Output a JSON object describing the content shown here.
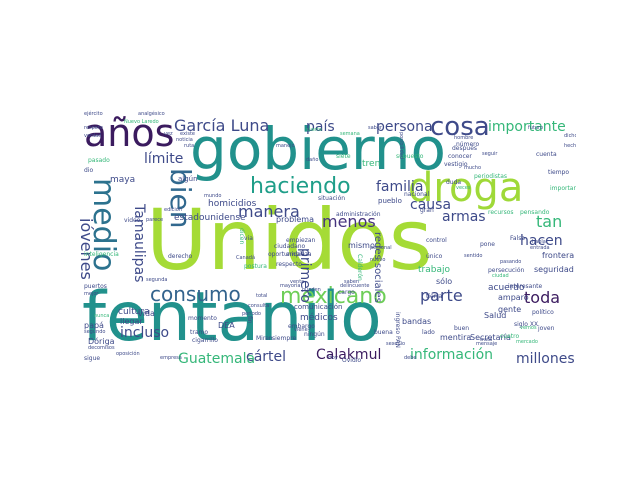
{
  "palette": {
    "dark_purple": "#3b1b5f",
    "purple": "#46337e",
    "slate_blue": "#3e4a89",
    "blue": "#365c8d",
    "teal_blue": "#277f8e",
    "teal": "#1f9e89",
    "green": "#35b779",
    "lime": "#9fd938",
    "yellow_green": "#c8e020"
  },
  "words": [
    {
      "text": "Unidos",
      "color": "#a5db36"
    },
    {
      "text": "fentanilo",
      "color": "#21918c"
    },
    {
      "text": "gobierno",
      "color": "#21918c"
    },
    {
      "text": "años",
      "color": "#3b1b5f"
    },
    {
      "text": "droga",
      "color": "#9fd938"
    },
    {
      "text": "medio",
      "color": "#2c728e"
    },
    {
      "text": "bien",
      "color": "#31688e"
    },
    {
      "text": "cosa",
      "color": "#3e4a89"
    },
    {
      "text": "haciendo",
      "color": "#1f9e89"
    },
    {
      "text": "mexicano",
      "color": "#6ece58"
    },
    {
      "text": "consumo",
      "color": "#33638d"
    },
    {
      "text": "García Luna",
      "color": "#3e4a89"
    },
    {
      "text": "jóvenes",
      "color": "#3e4a89"
    },
    {
      "text": "Tamaulipas",
      "color": "#3e4a89"
    },
    {
      "text": "importante",
      "color": "#35b779"
    },
    {
      "text": "manera",
      "color": "#3e4a89"
    },
    {
      "text": "menos",
      "color": "#46337e"
    },
    {
      "text": "primero",
      "color": "#3e4a89"
    },
    {
      "text": "país",
      "color": "#3e4a89"
    },
    {
      "text": "persona",
      "color": "#3e4a89"
    },
    {
      "text": "límite",
      "color": "#3e4a89"
    },
    {
      "text": "familia",
      "color": "#3e4a89"
    },
    {
      "text": "causa",
      "color": "#3e4a89"
    },
    {
      "text": "armas",
      "color": "#3e4a89"
    },
    {
      "text": "hacen",
      "color": "#3e4a89"
    },
    {
      "text": "tan",
      "color": "#35b779"
    },
    {
      "text": "toda",
      "color": "#3b1b5f"
    },
    {
      "text": "parte",
      "color": "#3e4a89"
    },
    {
      "text": "incluso",
      "color": "#3e4a89"
    },
    {
      "text": "Guatemala",
      "color": "#35b779"
    },
    {
      "text": "cártel",
      "color": "#3e4a89"
    },
    {
      "text": "Calakmul",
      "color": "#3b1b5f"
    },
    {
      "text": "información",
      "color": "#35b779"
    },
    {
      "text": "millones",
      "color": "#3e4a89"
    },
    {
      "text": "redes sociales",
      "color": "#3e4a89"
    },
    {
      "text": "homicidios",
      "color": "#3e4a89"
    },
    {
      "text": "maya",
      "color": "#3e4a89"
    },
    {
      "text": "amparo",
      "color": "#3e4a89"
    },
    {
      "text": "seguridad",
      "color": "#3e4a89"
    },
    {
      "text": "frontera",
      "color": "#3e4a89"
    },
    {
      "text": "cultura",
      "color": "#3e4a89"
    },
    {
      "text": "DEA",
      "color": "#3e4a89"
    },
    {
      "text": "médicos",
      "color": "#3e4a89"
    },
    {
      "text": "mentira",
      "color": "#3e4a89"
    },
    {
      "text": "bandas",
      "color": "#3e4a89"
    },
    {
      "text": "llegar",
      "color": "#3e4a89"
    },
    {
      "text": "papá",
      "color": "#3e4a89"
    },
    {
      "text": "Dóriga",
      "color": "#3e4a89"
    },
    {
      "text": "sólo",
      "color": "#3e4a89"
    },
    {
      "text": "Salud",
      "color": "#3e4a89"
    },
    {
      "text": "Secretaría",
      "color": "#3e4a89"
    },
    {
      "text": "comunicación",
      "color": "#3e4a89"
    },
    {
      "text": "estadounidense",
      "color": "#3e4a89"
    },
    {
      "text": "problema",
      "color": "#3e4a89"
    },
    {
      "text": "acuerdo",
      "color": "#3e4a89"
    },
    {
      "text": "gente",
      "color": "#3e4a89"
    },
    {
      "text": "mismo",
      "color": "#3e4a89"
    },
    {
      "text": "vida",
      "color": "#3e4a89"
    },
    {
      "text": "momento",
      "color": "#3e4a89"
    },
    {
      "text": "trabajo",
      "color": "#35b779"
    },
    {
      "text": "ejército",
      "color": "#3e4a89"
    },
    {
      "text": "analgésico",
      "color": "#3e4a89"
    },
    {
      "text": "Nuevo Laredo",
      "color": "#35b779"
    },
    {
      "text": "noticia",
      "color": "#3e4a89"
    },
    {
      "text": "mundo",
      "color": "#3e4a89"
    },
    {
      "text": "después",
      "color": "#3e4a89"
    },
    {
      "text": "conocer",
      "color": "#3e4a89"
    },
    {
      "text": "vestigio",
      "color": "#3e4a89"
    },
    {
      "text": "periodistas",
      "color": "#35b779"
    },
    {
      "text": "importantes",
      "color": "#35b779"
    },
    {
      "text": "inteligencia",
      "color": "#35b779"
    },
    {
      "text": "tramo",
      "color": "#3e4a89"
    },
    {
      "text": "cigarrillo",
      "color": "#3e4a89"
    },
    {
      "text": "persecución",
      "color": "#3e4a89"
    },
    {
      "text": "interesante",
      "color": "#3e4a89"
    },
    {
      "text": "político",
      "color": "#3e4a89"
    },
    {
      "text": "siglo XX",
      "color": "#3e4a89"
    },
    {
      "text": "cuatro",
      "color": "#35b779"
    },
    {
      "text": "gran",
      "color": "#3e4a89"
    },
    {
      "text": "futuro",
      "color": "#3e4a89"
    },
    {
      "text": "dicho",
      "color": "#3e4a89"
    },
    {
      "text": "suerte",
      "color": "#35b779"
    },
    {
      "text": "saber",
      "color": "#3e4a89"
    },
    {
      "text": "tren",
      "color": "#35b779"
    },
    {
      "text": "siete",
      "color": "#35b779"
    },
    {
      "text": "supuesto",
      "color": "#35b779"
    },
    {
      "text": "duda",
      "color": "#3e4a89"
    },
    {
      "text": "algún",
      "color": "#3e4a89"
    },
    {
      "text": "edición",
      "color": "#3e4a89"
    },
    {
      "text": "via",
      "color": "#3e4a89"
    },
    {
      "text": "empiezan",
      "color": "#3e4a89"
    },
    {
      "text": "empieza",
      "color": "#3e4a89"
    },
    {
      "text": "ciudadano",
      "color": "#3e4a89"
    },
    {
      "text": "oportunidad",
      "color": "#3e4a89"
    },
    {
      "text": "respecto",
      "color": "#3e4a89"
    },
    {
      "text": "situación",
      "color": "#3e4a89"
    },
    {
      "text": "administración",
      "color": "#3e4a89"
    },
    {
      "text": "pueblo",
      "color": "#3e4a89"
    },
    {
      "text": "nacional",
      "color": "#3e4a89"
    },
    {
      "text": "número",
      "color": "#3e4a89"
    },
    {
      "text": "recursos",
      "color": "#35b779"
    },
    {
      "text": "pensando",
      "color": "#35b779"
    },
    {
      "text": "Falso",
      "color": "#3e4a89"
    },
    {
      "text": "pone",
      "color": "#3e4a89"
    },
    {
      "text": "joven",
      "color": "#3e4a89"
    },
    {
      "text": "siempre",
      "color": "#3e4a89"
    },
    {
      "text": "buena",
      "color": "#3e4a89"
    },
    {
      "text": "buen",
      "color": "#3e4a89"
    },
    {
      "text": "tierra",
      "color": "#3e4a89"
    },
    {
      "text": "control",
      "color": "#3e4a89"
    },
    {
      "text": "único",
      "color": "#3e4a89"
    },
    {
      "text": "ingreso PAN",
      "color": "#3e4a89"
    },
    {
      "text": "Calderón",
      "color": "#35b779"
    },
    {
      "text": "personal",
      "color": "#3e4a89"
    },
    {
      "text": "nuevo",
      "color": "#3e4a89"
    },
    {
      "text": "embargo",
      "color": "#3e4a89"
    },
    {
      "text": "pueden",
      "color": "#3e4a89"
    },
    {
      "text": "ningún",
      "color": "#3e4a89"
    },
    {
      "text": "Canadá",
      "color": "#3e4a89"
    },
    {
      "text": "postura",
      "color": "#35b779"
    },
    {
      "text": "consulta",
      "color": "#3e4a89"
    },
    {
      "text": "periodo",
      "color": "#3e4a89"
    },
    {
      "text": "segunda",
      "color": "#3e4a89"
    },
    {
      "text": "puertos",
      "color": "#3e4a89"
    },
    {
      "text": "mejor",
      "color": "#3e4a89"
    },
    {
      "text": "decomisos",
      "color": "#3e4a89"
    },
    {
      "text": "segundo",
      "color": "#3e4a89"
    },
    {
      "text": "oposición",
      "color": "#3e4a89"
    },
    {
      "text": "empresa",
      "color": "#3e4a89"
    },
    {
      "text": "nunca",
      "color": "#35b779"
    },
    {
      "text": "sigue",
      "color": "#3e4a89"
    },
    {
      "text": "Ovidio",
      "color": "#3e4a89"
    },
    {
      "text": "Hoy",
      "color": "#3e4a89"
    },
    {
      "text": "derecho",
      "color": "#3e4a89"
    },
    {
      "text": "dicen",
      "color": "#35b779"
    },
    {
      "text": "cargo",
      "color": "#3e4a89"
    },
    {
      "text": "delincuente",
      "color": "#3e4a89"
    },
    {
      "text": "saben",
      "color": "#3e4a89"
    },
    {
      "text": "debe",
      "color": "#3e4a89"
    },
    {
      "text": "mensaje",
      "color": "#3e4a89"
    },
    {
      "text": "mercado",
      "color": "#35b779"
    },
    {
      "text": "pasando",
      "color": "#3e4a89"
    },
    {
      "text": "verdad",
      "color": "#3e4a89"
    },
    {
      "text": "respeto",
      "color": "#3e4a89"
    },
    {
      "text": "ruta",
      "color": "#3e4a89"
    },
    {
      "text": "vez",
      "color": "#3e4a89"
    },
    {
      "text": "existe",
      "color": "#3e4a89"
    },
    {
      "text": "semana",
      "color": "#35b779"
    },
    {
      "text": "posibilidad",
      "color": "#3e4a89"
    },
    {
      "text": "manejo",
      "color": "#3e4a89"
    },
    {
      "text": "daño",
      "color": "#3e4a89"
    },
    {
      "text": "hecho",
      "color": "#3e4a89"
    },
    {
      "text": "tiempo",
      "color": "#3e4a89"
    },
    {
      "text": "cuenta",
      "color": "#3e4a89"
    },
    {
      "text": "seguir",
      "color": "#3e4a89"
    },
    {
      "text": "pasado",
      "color": "#35b779"
    },
    {
      "text": "dio",
      "color": "#3e4a89"
    },
    {
      "text": "video",
      "color": "#3e4a89"
    },
    {
      "text": "parece",
      "color": "#3e4a89"
    },
    {
      "text": "hombre",
      "color": "#3e4a89"
    },
    {
      "text": "fin",
      "color": "#3e4a89"
    },
    {
      "text": "Miren",
      "color": "#3e4a89"
    },
    {
      "text": "viene",
      "color": "#3e4a89"
    },
    {
      "text": "sexenio",
      "color": "#3e4a89"
    },
    {
      "text": "venta",
      "color": "#3e4a89"
    },
    {
      "text": "mayoría",
      "color": "#3e4a89"
    },
    {
      "text": "vemos",
      "color": "#35b779"
    },
    {
      "text": "total",
      "color": "#3e4a89"
    },
    {
      "text": "sentido",
      "color": "#3e4a89"
    },
    {
      "text": "entrada",
      "color": "#3e4a89"
    },
    {
      "text": "trata",
      "color": "#3e4a89"
    },
    {
      "text": "habla",
      "color": "#3e4a89"
    },
    {
      "text": "ciudad",
      "color": "#35b779"
    },
    {
      "text": "lado",
      "color": "#3e4a89"
    },
    {
      "text": "veces",
      "color": "#35b779"
    },
    {
      "text": "mucho",
      "color": "#3e4a89"
    }
  ]
}
